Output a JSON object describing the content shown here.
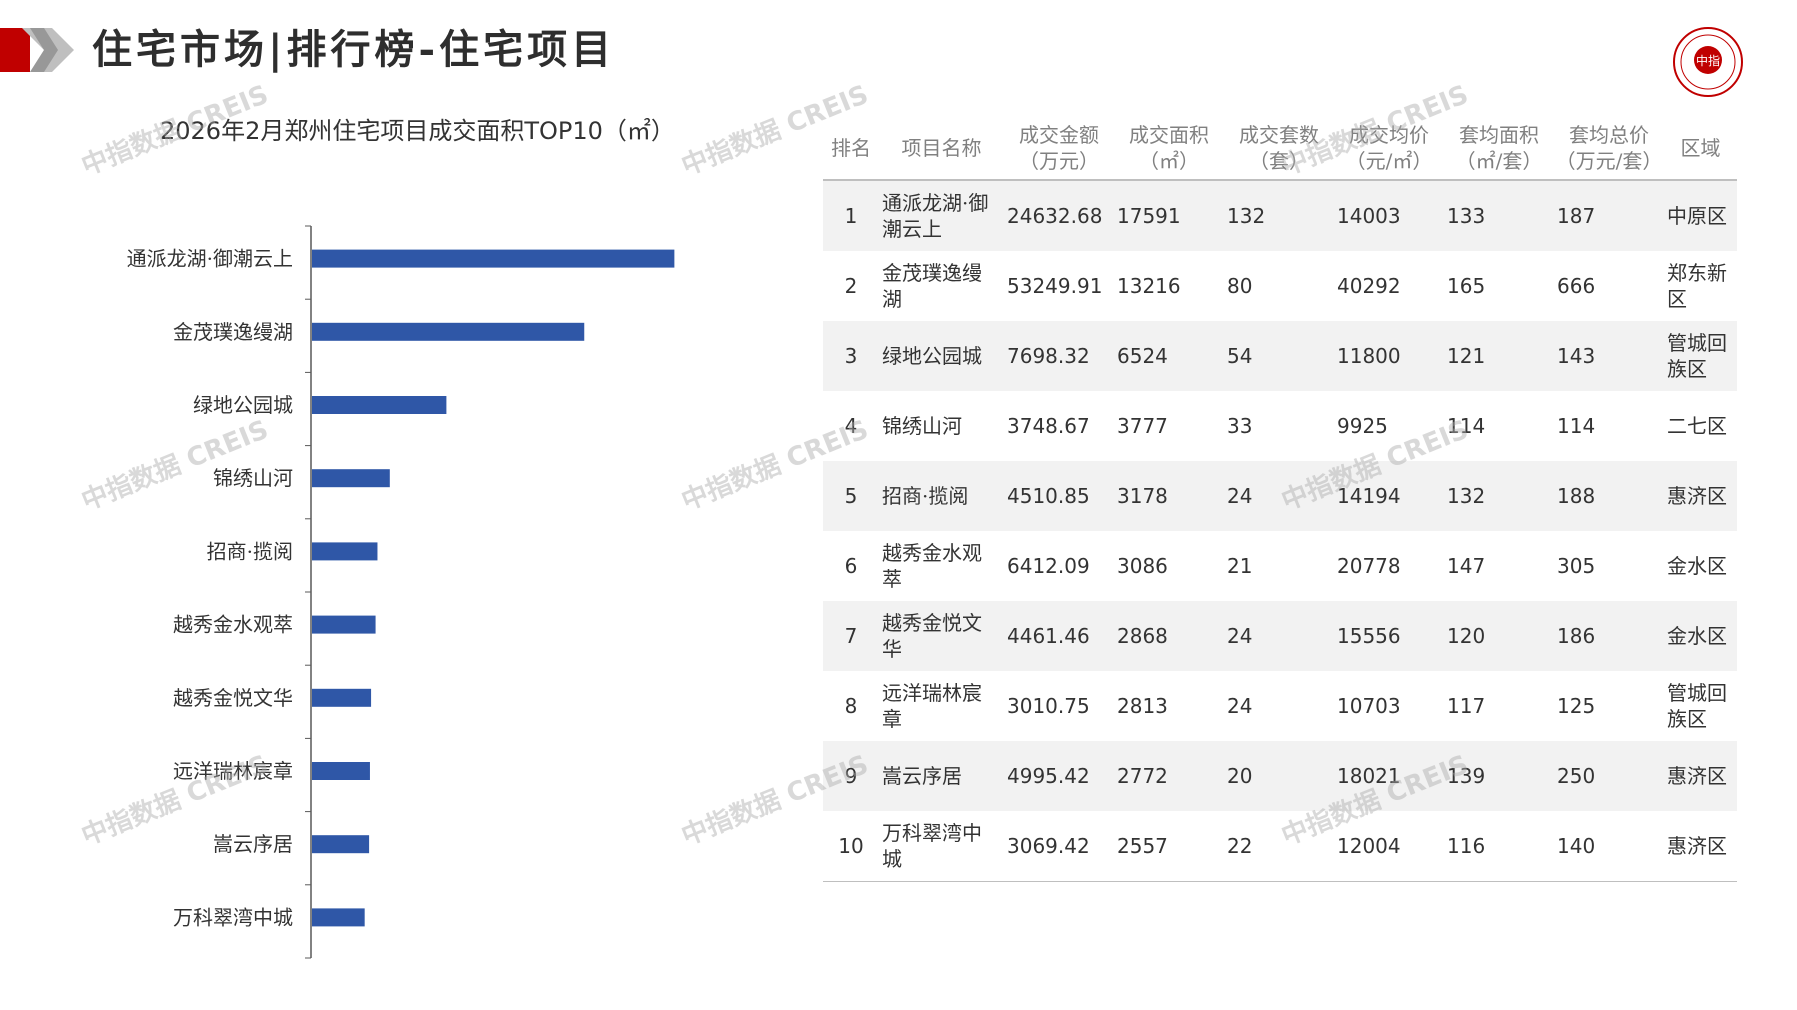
{
  "page": {
    "title": "住宅市场|排行榜-住宅项目",
    "watermark": "中指数据 CREIS",
    "accent_color": "#c00000",
    "bar_color": "#2f57a7",
    "logo_text": "中指"
  },
  "chart_data": {
    "type": "bar",
    "orientation": "horizontal",
    "title": "2026年2月郑州住宅项目成交面积TOP10（㎡）",
    "categories": [
      "通派龙湖·御潮云上",
      "金茂璞逸缦湖",
      "绿地公园城",
      "锦绣山河",
      "招商·揽阅",
      "越秀金水观萃",
      "越秀金悦文华",
      "远洋瑞林宸章",
      "嵩云序居",
      "万科翠湾中城"
    ],
    "values": [
      17591,
      13216,
      6524,
      3777,
      3178,
      3086,
      2868,
      2813,
      2772,
      2557
    ],
    "xlim": [
      0,
      20000
    ],
    "grid": false,
    "legend": "none"
  },
  "table": {
    "headers": [
      {
        "label": "排名",
        "unit": ""
      },
      {
        "label": "项目名称",
        "unit": ""
      },
      {
        "label": "成交金额",
        "unit": "（万元）"
      },
      {
        "label": "成交面积",
        "unit": "（㎡）"
      },
      {
        "label": "成交套数",
        "unit": "（套）"
      },
      {
        "label": "成交均价",
        "unit": "（元/㎡）"
      },
      {
        "label": "套均面积",
        "unit": "（㎡/套）"
      },
      {
        "label": "套均总价",
        "unit": "（万元/套）"
      },
      {
        "label": "区域",
        "unit": ""
      }
    ],
    "rows": [
      {
        "rank": "1",
        "name": "通派龙湖·御潮云上",
        "amount": "24632.68",
        "area": "17591",
        "units": "132",
        "avg_price": "14003",
        "avg_area": "133",
        "avg_total": "187",
        "region": "中原区"
      },
      {
        "rank": "2",
        "name": "金茂璞逸缦湖",
        "amount": "53249.91",
        "area": "13216",
        "units": "80",
        "avg_price": "40292",
        "avg_area": "165",
        "avg_total": "666",
        "region": "郑东新区"
      },
      {
        "rank": "3",
        "name": "绿地公园城",
        "amount": "7698.32",
        "area": "6524",
        "units": "54",
        "avg_price": "11800",
        "avg_area": "121",
        "avg_total": "143",
        "region": "管城回族区"
      },
      {
        "rank": "4",
        "name": "锦绣山河",
        "amount": "3748.67",
        "area": "3777",
        "units": "33",
        "avg_price": "9925",
        "avg_area": "114",
        "avg_total": "114",
        "region": "二七区"
      },
      {
        "rank": "5",
        "name": "招商·揽阅",
        "amount": "4510.85",
        "area": "3178",
        "units": "24",
        "avg_price": "14194",
        "avg_area": "132",
        "avg_total": "188",
        "region": "惠济区"
      },
      {
        "rank": "6",
        "name": "越秀金水观萃",
        "amount": "6412.09",
        "area": "3086",
        "units": "21",
        "avg_price": "20778",
        "avg_area": "147",
        "avg_total": "305",
        "region": "金水区"
      },
      {
        "rank": "7",
        "name": "越秀金悦文华",
        "amount": "4461.46",
        "area": "2868",
        "units": "24",
        "avg_price": "15556",
        "avg_area": "120",
        "avg_total": "186",
        "region": "金水区"
      },
      {
        "rank": "8",
        "name": "远洋瑞林宸章",
        "amount": "3010.75",
        "area": "2813",
        "units": "24",
        "avg_price": "10703",
        "avg_area": "117",
        "avg_total": "125",
        "region": "管城回族区"
      },
      {
        "rank": "9",
        "name": "嵩云序居",
        "amount": "4995.42",
        "area": "2772",
        "units": "20",
        "avg_price": "18021",
        "avg_area": "139",
        "avg_total": "250",
        "region": "惠济区"
      },
      {
        "rank": "10",
        "name": "万科翠湾中城",
        "amount": "3069.42",
        "area": "2557",
        "units": "22",
        "avg_price": "12004",
        "avg_area": "116",
        "avg_total": "140",
        "region": "惠济区"
      }
    ]
  }
}
